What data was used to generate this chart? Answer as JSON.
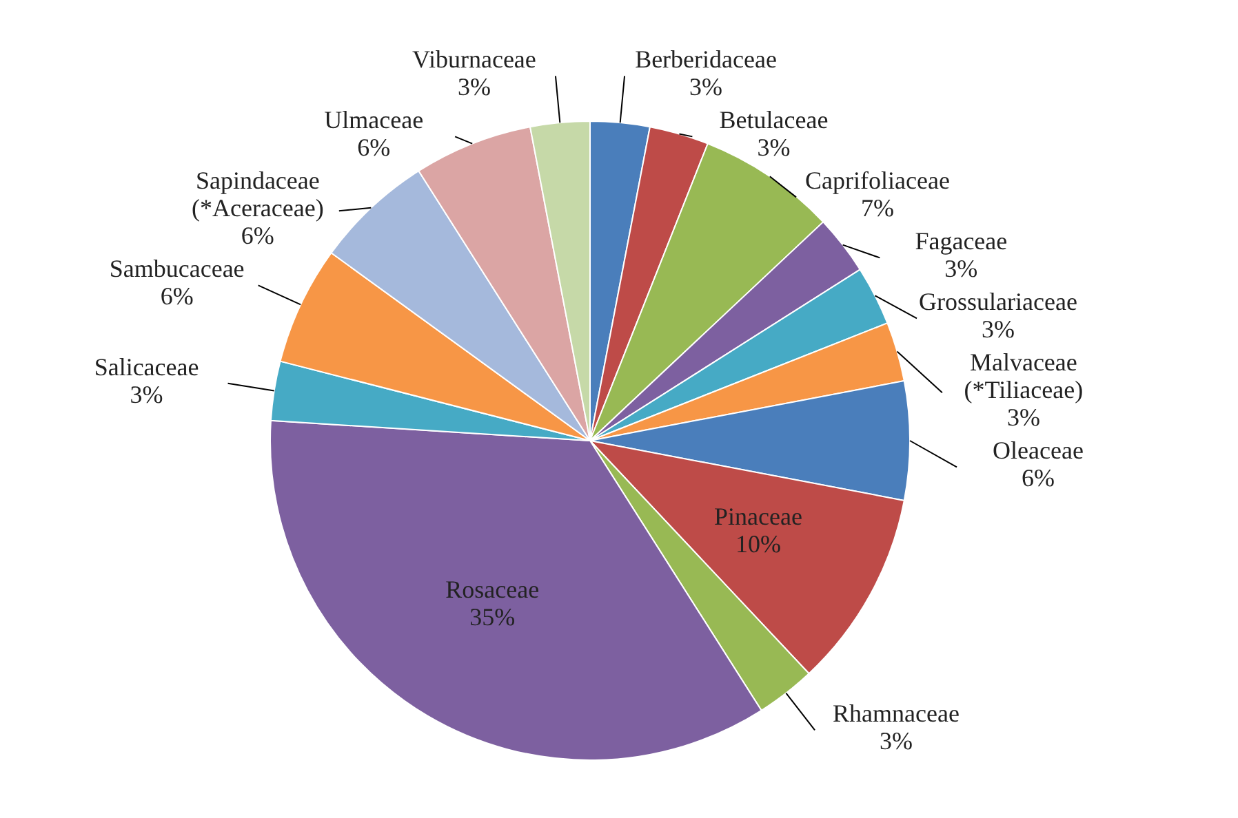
{
  "chart_data": {
    "type": "pie",
    "categories": [
      "Berberidaceae",
      "Betulaceae",
      "Caprifoliaceae",
      "Fagaceae",
      "Grossulariaceae",
      "Malvaceae (*Tiliaceae)",
      "Oleaceae",
      "Pinaceae",
      "Rhamnaceae",
      "Rosaceae",
      "Salicaceae",
      "Sambucaceae",
      "Sapindaceae (*Aceraceae)",
      "Ulmaceae",
      "Viburnaceae"
    ],
    "values": [
      3,
      3,
      7,
      3,
      3,
      3,
      6,
      10,
      3,
      35,
      3,
      6,
      6,
      6,
      3
    ],
    "value_labels": [
      "3%",
      "3%",
      "7%",
      "3%",
      "3%",
      "3%",
      "6%",
      "10%",
      "3%",
      "35%",
      "3%",
      "6%",
      "6%",
      "6%",
      "3%"
    ],
    "colors": [
      "#4a7ebb",
      "#be4b48",
      "#98b954",
      "#7d60a0",
      "#46aac5",
      "#f79646",
      "#4a7ebb",
      "#be4b48",
      "#98b954",
      "#7d60a0",
      "#46aac5",
      "#f79646",
      "#a5b9dc",
      "#dba5a4",
      "#c6d9a8"
    ]
  }
}
